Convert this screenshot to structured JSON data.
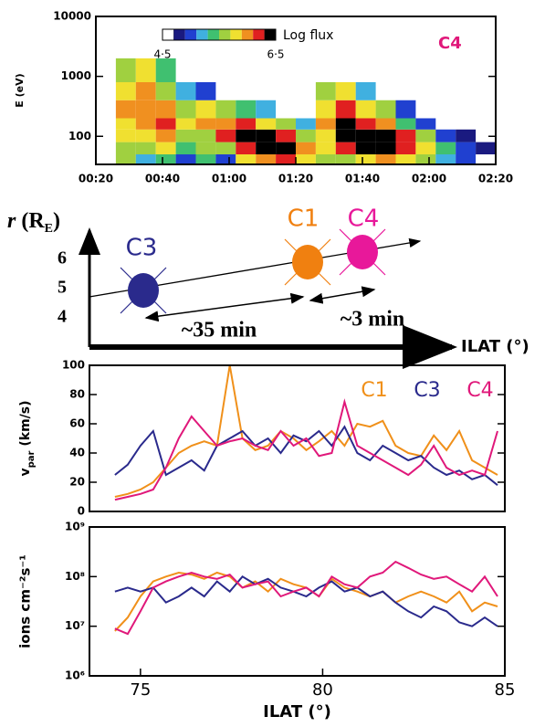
{
  "chart_data": [
    {
      "type": "heatmap",
      "annotation": "C4",
      "colorbar_label": "Log flux",
      "y_label": "E (eV)",
      "log_y": true,
      "xlim": [
        20,
        140
      ],
      "xticks": [
        {
          "value": 20,
          "label": "00:20"
        },
        {
          "value": 40,
          "label": "00:40"
        },
        {
          "value": 60,
          "label": "01:00"
        },
        {
          "value": 80,
          "label": "01:20"
        },
        {
          "value": 100,
          "label": "01:40"
        },
        {
          "value": 120,
          "label": "02:00"
        },
        {
          "value": 140,
          "label": "02:20"
        }
      ],
      "ylim": [
        34,
        10000
      ],
      "yticks": [
        100,
        1000,
        10000
      ],
      "zlim": [
        4.5,
        6.5
      ],
      "zticks": [
        {
          "value": 4.5,
          "label": "4·5"
        },
        {
          "value": 6.5,
          "label": "6·5"
        }
      ],
      "colorscale": [
        "#ffffff",
        "#1a1a80",
        "#2040d0",
        "#40b0e0",
        "#40c070",
        "#a0d040",
        "#f0e030",
        "#f09020",
        "#e02020",
        "#000000"
      ],
      "bins": [
        26,
        32,
        38,
        44,
        50,
        56,
        62,
        68,
        74,
        80,
        86,
        92,
        98,
        104,
        110,
        116,
        122,
        128,
        134,
        140
      ],
      "ybins": [
        34,
        50,
        80,
        130,
        200,
        400,
        800,
        2000
      ],
      "z": [
        [
          5.5,
          5.2,
          5.4,
          5.0,
          5.3,
          5.0,
          5.8,
          6.0,
          6.2,
          5.8,
          5.5,
          5.6,
          5.8,
          6.0,
          5.8,
          5.5,
          5.2,
          5.0,
          null
        ],
        [
          5.6,
          5.5,
          5.8,
          5.4,
          5.6,
          5.5,
          6.3,
          6.4,
          6.5,
          6.0,
          5.8,
          6.2,
          6.4,
          6.5,
          6.3,
          5.8,
          5.3,
          5.0,
          4.8
        ],
        [
          5.8,
          5.8,
          6.0,
          5.6,
          5.7,
          6.2,
          6.5,
          6.5,
          6.3,
          5.5,
          5.9,
          6.4,
          6.5,
          6.4,
          6.2,
          5.6,
          5.0,
          4.8,
          null
        ],
        [
          5.9,
          6.0,
          6.2,
          5.8,
          6.0,
          6.0,
          6.2,
          5.8,
          5.5,
          5.2,
          6.0,
          6.5,
          6.3,
          6.0,
          5.4,
          5.0,
          null,
          null,
          null
        ],
        [
          6.0,
          6.1,
          6.0,
          5.6,
          5.8,
          5.5,
          5.4,
          5.2,
          null,
          null,
          5.8,
          6.2,
          5.8,
          5.5,
          5.0,
          null,
          null,
          null,
          null
        ],
        [
          5.8,
          6.0,
          5.7,
          5.2,
          5.0,
          null,
          null,
          null,
          null,
          null,
          5.5,
          5.8,
          5.2,
          null,
          null,
          null,
          null,
          null,
          null
        ],
        [
          5.5,
          5.8,
          5.4,
          null,
          null,
          null,
          null,
          null,
          null,
          null,
          null,
          null,
          null,
          null,
          null,
          null,
          null,
          null,
          null
        ]
      ]
    },
    {
      "type": "line",
      "y_label_parts": [
        "v",
        "par",
        " (km/s)"
      ],
      "xlim": [
        73.6,
        85
      ],
      "ylim": [
        0,
        100
      ],
      "yticks": [
        0,
        20,
        40,
        60,
        80,
        100
      ],
      "log_y": false,
      "x": [
        74.3,
        74.65,
        75.0,
        75.35,
        75.7,
        76.05,
        76.4,
        76.75,
        77.1,
        77.45,
        77.8,
        78.15,
        78.5,
        78.85,
        79.2,
        79.55,
        79.9,
        80.25,
        80.6,
        80.95,
        81.3,
        81.65,
        82.0,
        82.35,
        82.7,
        83.05,
        83.4,
        83.75,
        84.1,
        84.45,
        84.8
      ],
      "series": [
        {
          "name": "C1",
          "color": "#f0901a",
          "values": [
            10,
            12,
            15,
            20,
            30,
            40,
            45,
            48,
            45,
            100,
            50,
            42,
            45,
            55,
            50,
            42,
            48,
            55,
            45,
            60,
            58,
            62,
            45,
            40,
            38,
            52,
            42,
            55,
            35,
            30,
            25
          ]
        },
        {
          "name": "C3",
          "color": "#2a2a8c",
          "values": [
            25,
            32,
            45,
            55,
            25,
            30,
            35,
            28,
            45,
            50,
            55,
            45,
            50,
            40,
            52,
            48,
            55,
            45,
            58,
            40,
            35,
            45,
            40,
            35,
            38,
            30,
            25,
            28,
            22,
            25,
            18
          ]
        },
        {
          "name": "C4",
          "color": "#e0187a",
          "values": [
            8,
            10,
            12,
            15,
            30,
            50,
            65,
            55,
            45,
            48,
            50,
            45,
            42,
            55,
            45,
            50,
            38,
            40,
            75,
            45,
            40,
            35,
            30,
            25,
            32,
            45,
            30,
            25,
            28,
            25,
            55
          ]
        }
      ]
    },
    {
      "type": "line",
      "y_label": "ions cm⁻²s⁻¹",
      "x_label": "ILAT (°)",
      "log_y": true,
      "xlim": [
        73.6,
        85
      ],
      "xticks": [
        75,
        80,
        85
      ],
      "ylim": [
        1000000,
        1000000000
      ],
      "yticks": [
        {
          "value": 1000000,
          "label": "10⁶"
        },
        {
          "value": 10000000,
          "label": "10⁷"
        },
        {
          "value": 100000000,
          "label": "10⁸"
        },
        {
          "value": 1000000000,
          "label": "10⁹"
        }
      ],
      "x": [
        74.3,
        74.65,
        75.0,
        75.35,
        75.7,
        76.05,
        76.4,
        76.75,
        77.1,
        77.45,
        77.8,
        78.15,
        78.5,
        78.85,
        79.2,
        79.55,
        79.9,
        80.25,
        80.6,
        80.95,
        81.3,
        81.65,
        82.0,
        82.35,
        82.7,
        83.05,
        83.4,
        83.75,
        84.1,
        84.45,
        84.8
      ],
      "series": [
        {
          "name": "C1",
          "color": "#f0901a",
          "values": [
            8000000,
            15000000,
            40000000,
            80000000,
            100000000,
            120000000,
            110000000,
            90000000,
            120000000,
            100000000,
            60000000,
            80000000,
            50000000,
            90000000,
            70000000,
            60000000,
            40000000,
            90000000,
            60000000,
            50000000,
            40000000,
            50000000,
            30000000,
            40000000,
            50000000,
            40000000,
            30000000,
            50000000,
            20000000,
            30000000,
            25000000
          ]
        },
        {
          "name": "C3",
          "color": "#2a2a8c",
          "values": [
            50000000,
            60000000,
            50000000,
            60000000,
            30000000,
            40000000,
            60000000,
            40000000,
            80000000,
            50000000,
            100000000,
            70000000,
            90000000,
            60000000,
            50000000,
            40000000,
            60000000,
            80000000,
            50000000,
            60000000,
            40000000,
            50000000,
            30000000,
            20000000,
            15000000,
            25000000,
            20000000,
            12000000,
            10000000,
            15000000,
            10000000
          ]
        },
        {
          "name": "C4",
          "color": "#e0187a",
          "values": [
            9000000,
            7000000,
            20000000,
            60000000,
            80000000,
            100000000,
            120000000,
            100000000,
            90000000,
            110000000,
            60000000,
            70000000,
            80000000,
            40000000,
            50000000,
            60000000,
            40000000,
            100000000,
            70000000,
            60000000,
            100000000,
            120000000,
            200000000,
            150000000,
            110000000,
            90000000,
            100000000,
            70000000,
            50000000,
            100000000,
            40000000
          ]
        }
      ]
    }
  ],
  "diagram": {
    "axis_label_parts": [
      "r",
      " (R",
      "E",
      ")"
    ],
    "r_ticks": [
      4,
      5,
      6
    ],
    "x_axis_label": "ILAT (°)",
    "spacecraft": [
      {
        "label": "C3",
        "color": "#2a2a8c"
      },
      {
        "label": "C1",
        "color": "#f08010"
      },
      {
        "label": "C4",
        "color": "#e8189a"
      }
    ],
    "intervals": [
      "~35 min",
      "~3 min"
    ]
  }
}
